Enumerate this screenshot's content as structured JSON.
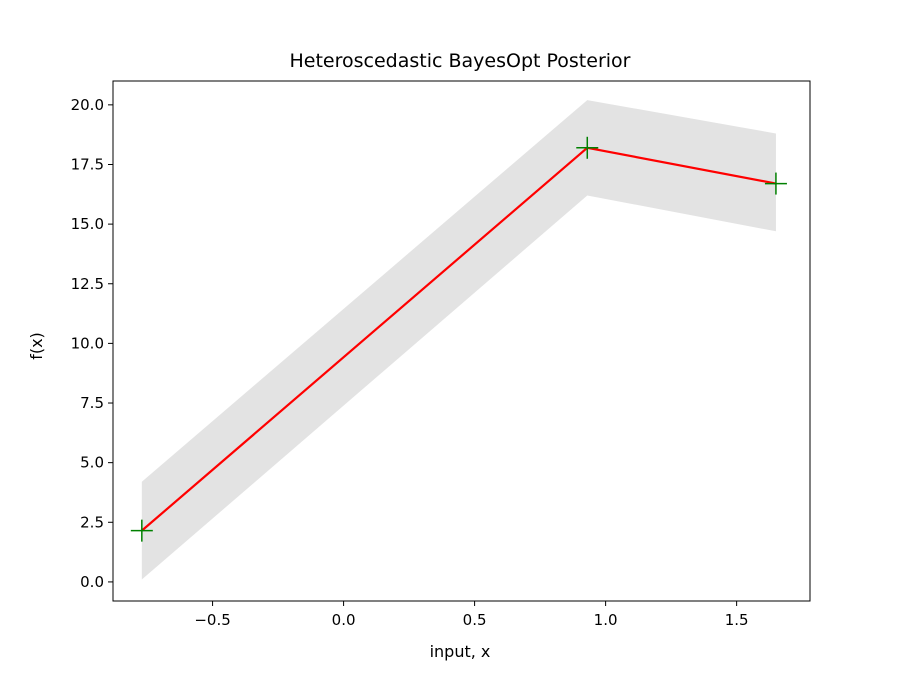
{
  "chart_data": {
    "type": "line",
    "title": "Heteroscedastic BayesOpt Posterior",
    "xlabel": "input, x",
    "ylabel": "f(x)",
    "xlim": [
      -0.88,
      1.78
    ],
    "ylim": [
      -0.8,
      21.0
    ],
    "grid": false,
    "x_ticks": [
      -0.5,
      0.0,
      0.5,
      1.0,
      1.5
    ],
    "x_tick_labels": [
      "−0.5",
      "0.0",
      "0.5",
      "1.0",
      "1.5"
    ],
    "y_ticks": [
      0.0,
      2.5,
      5.0,
      7.5,
      10.0,
      12.5,
      15.0,
      17.5,
      20.0
    ],
    "y_tick_labels": [
      "0.0",
      "2.5",
      "5.0",
      "7.5",
      "10.0",
      "12.5",
      "15.0",
      "17.5",
      "20.0"
    ],
    "series": [
      {
        "kind": "band",
        "color": "#e3e3e3",
        "x": [
          -0.77,
          0.93,
          1.65
        ],
        "lower": [
          0.1,
          16.2,
          14.7
        ],
        "upper": [
          4.2,
          20.2,
          18.8
        ]
      },
      {
        "kind": "line",
        "color": "#ff0000",
        "x": [
          -0.77,
          0.93,
          1.65
        ],
        "values": [
          2.15,
          18.2,
          16.7
        ]
      },
      {
        "kind": "points",
        "color": "#008000",
        "marker": "plus",
        "x": [
          -0.77,
          0.93,
          1.65
        ],
        "values": [
          2.15,
          18.2,
          16.7
        ]
      }
    ]
  }
}
